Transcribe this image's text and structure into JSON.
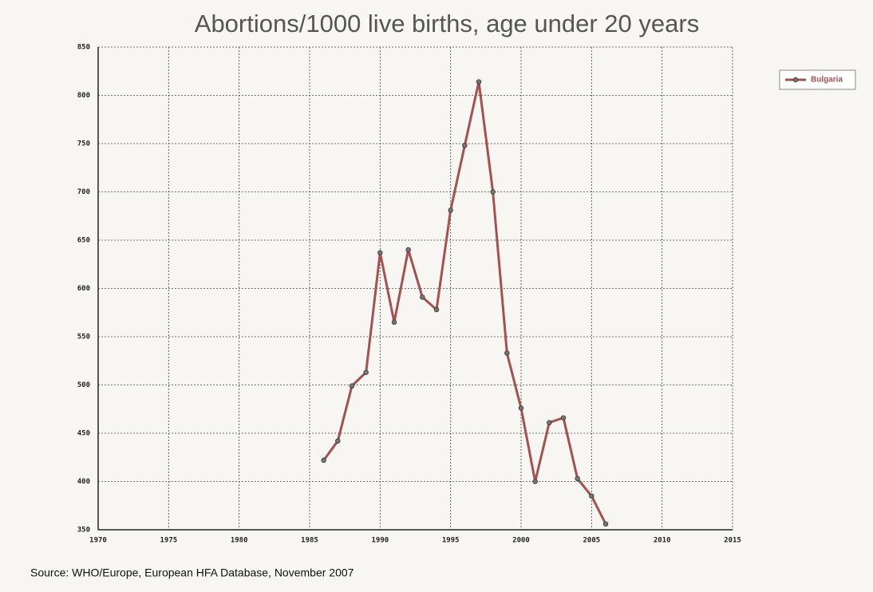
{
  "chart_data": {
    "type": "line",
    "title": "Abortions/1000 live births, age under 20 years",
    "note": "Source: WHO/Europe, European HFA Database, November 2007",
    "x": [
      1986,
      1987,
      1988,
      1989,
      1990,
      1991,
      1992,
      1993,
      1994,
      1995,
      1996,
      1997,
      1998,
      1999,
      2000,
      2001,
      2002,
      2003,
      2004,
      2005,
      2006
    ],
    "series": [
      {
        "name": "Bulgaria",
        "color": "#a5514e",
        "values": [
          422,
          442,
          499,
          513,
          637,
          565,
          640,
          591,
          578,
          681,
          748,
          814,
          700,
          533,
          476,
          400,
          461,
          466,
          403,
          385,
          356
        ]
      }
    ],
    "xlim": [
      1970,
      2015
    ],
    "xticks": [
      1970,
      1975,
      1980,
      1985,
      1990,
      1995,
      2000,
      2005,
      2010,
      2015
    ],
    "ylim": [
      350,
      850
    ],
    "yticks": [
      350,
      400,
      450,
      500,
      550,
      600,
      650,
      700,
      750,
      800,
      850
    ],
    "grid": true,
    "legend": "top-right"
  }
}
